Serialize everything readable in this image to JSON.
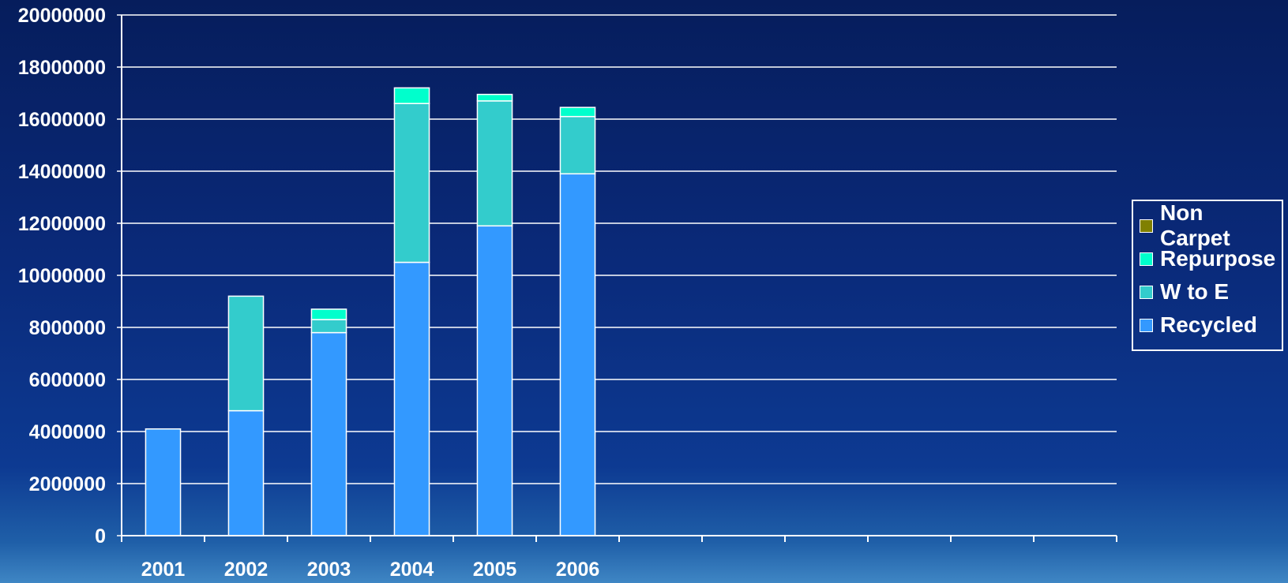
{
  "chart_data": {
    "type": "bar",
    "stacked": true,
    "categories": [
      "2001",
      "2002",
      "2003",
      "2004",
      "2005",
      "2006"
    ],
    "x_slots": 12,
    "series": [
      {
        "name": "Recycled",
        "color": "#3399ff",
        "values": [
          4100000,
          4800000,
          7800000,
          10500000,
          11900000,
          13900000
        ]
      },
      {
        "name": "W to E",
        "color": "#33cccc",
        "values": [
          0,
          4400000,
          500000,
          6100000,
          4800000,
          2200000
        ]
      },
      {
        "name": "Repurpose",
        "color": "#00ffcc",
        "values": [
          0,
          0,
          400000,
          600000,
          250000,
          350000
        ]
      },
      {
        "name": "Non Carpet",
        "color": "#808000",
        "values": [
          0,
          0,
          0,
          0,
          0,
          0
        ]
      }
    ],
    "ylim": [
      0,
      20000000
    ],
    "y_ticks": [
      "0",
      "2000000",
      "4000000",
      "6000000",
      "8000000",
      "10000000",
      "12000000",
      "14000000",
      "16000000",
      "18000000",
      "20000000"
    ],
    "grid": true,
    "legend_position": "right",
    "legend_order": [
      "Non Carpet",
      "Repurpose",
      "W to E",
      "Recycled"
    ],
    "title": "",
    "xlabel": "",
    "ylabel": ""
  }
}
